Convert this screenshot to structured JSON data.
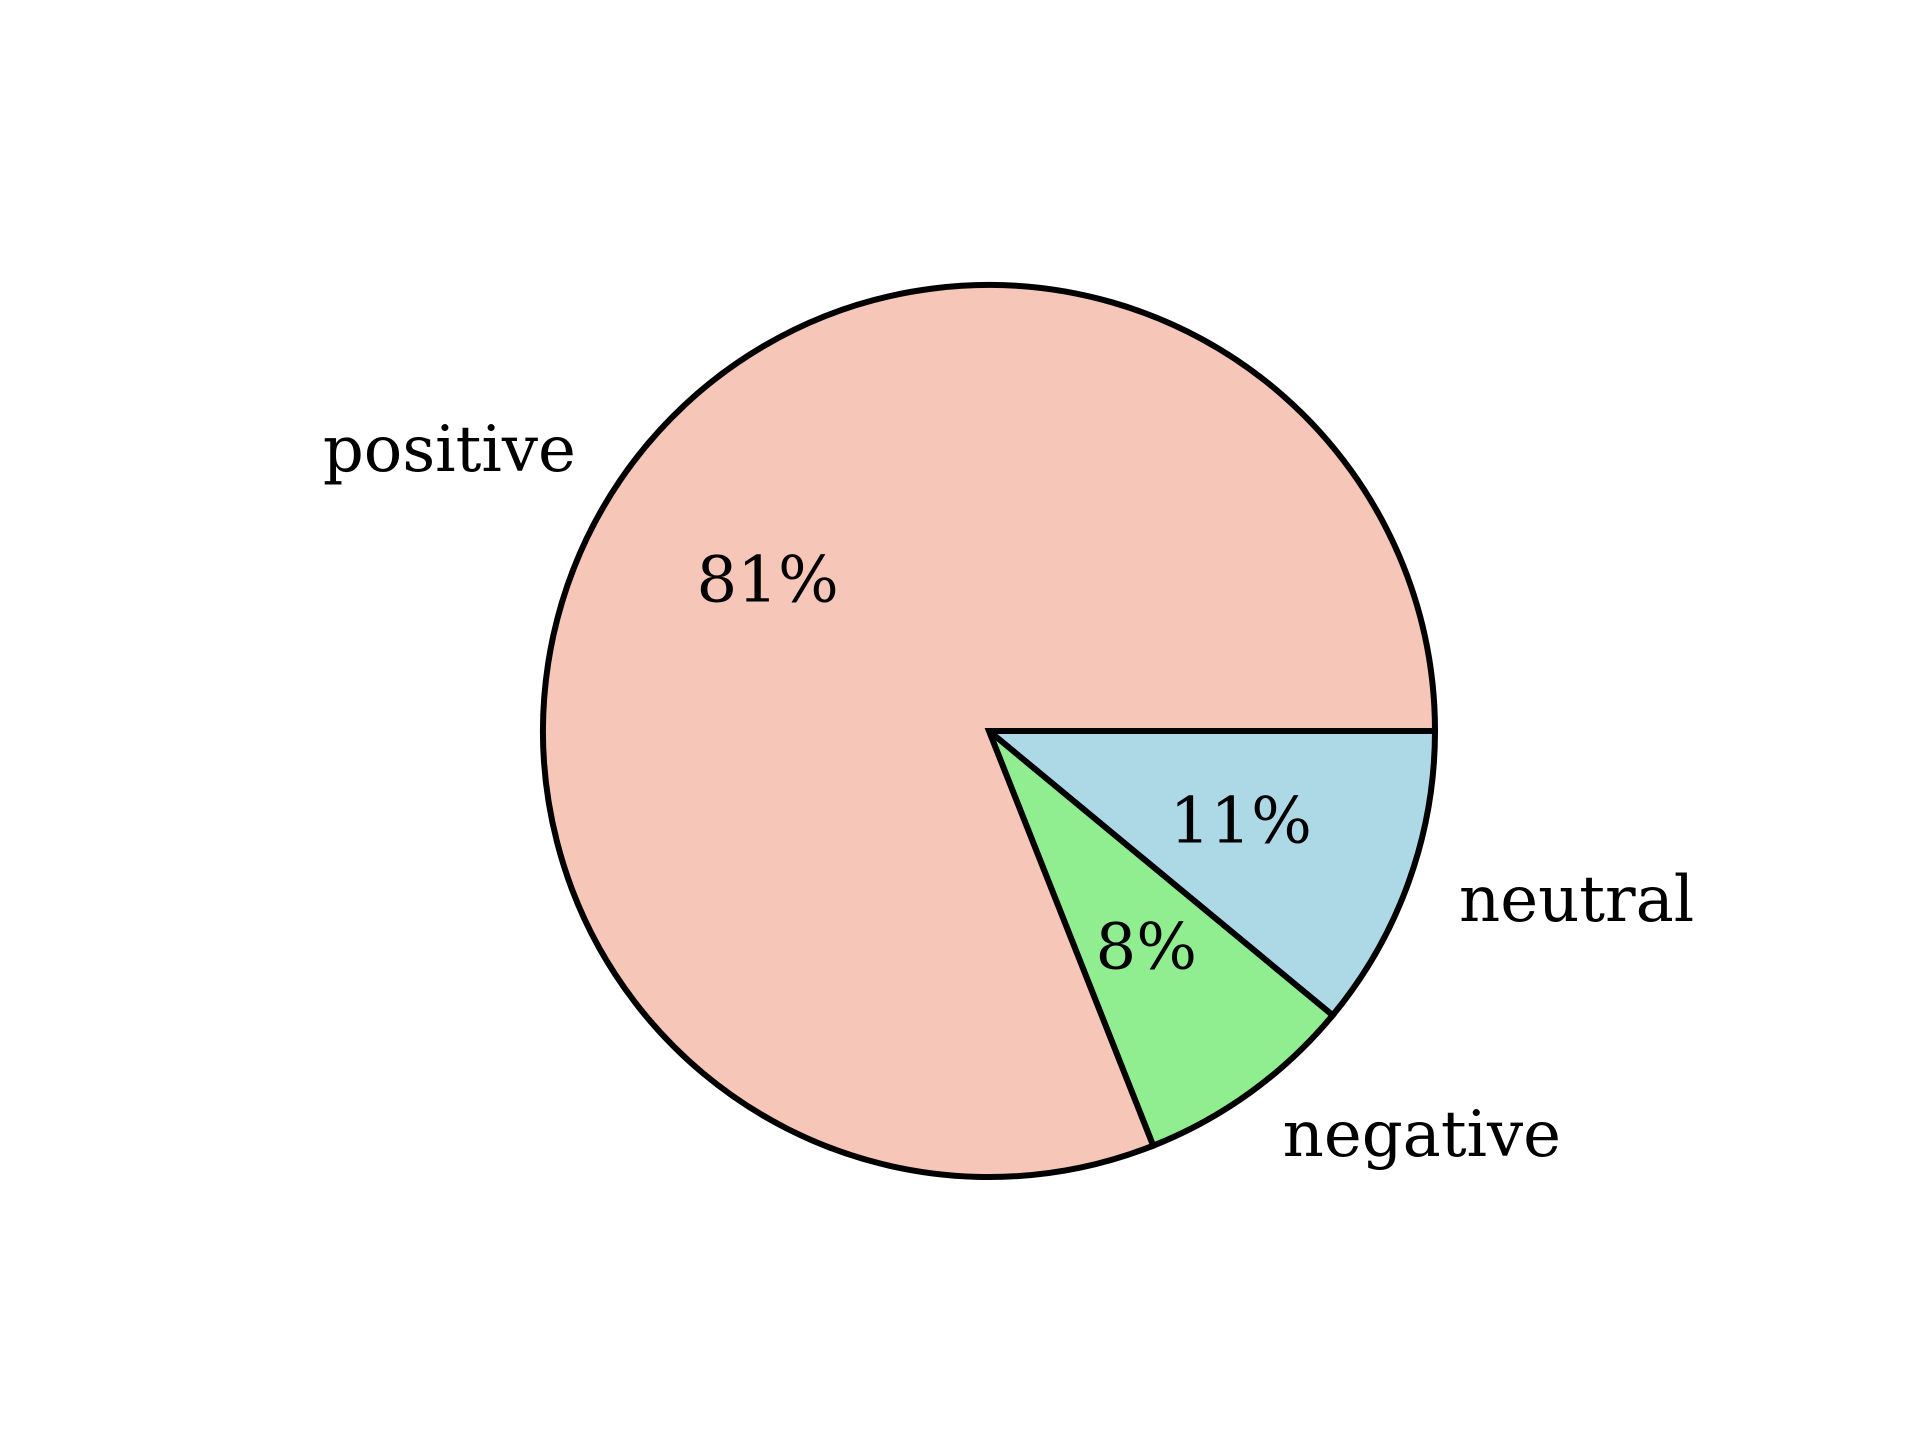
{
  "chart_data": {
    "type": "pie",
    "categories": [
      "neutral",
      "negative",
      "positive"
    ],
    "values": [
      11,
      8,
      81
    ],
    "percent_labels": [
      "11%",
      "8%",
      "81%"
    ],
    "colors": [
      "#add8e6",
      "#90ee90",
      "#f6c6b8"
    ],
    "start_angle_deg": 0,
    "direction": "clockwise",
    "edge_color": "#000000"
  }
}
